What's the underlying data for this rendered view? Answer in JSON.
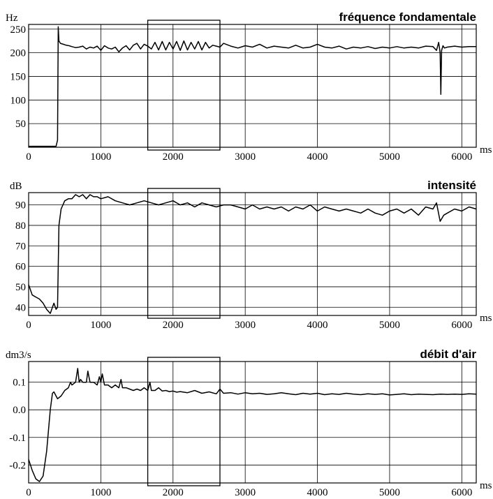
{
  "chart_data": [
    {
      "type": "line",
      "title": "fréquence fondamentale",
      "ylabel": "Hz",
      "xlabel": "ms",
      "xlim": [
        0,
        6200
      ],
      "ylim": [
        0,
        260
      ],
      "xticks": [
        0,
        1000,
        2000,
        3000,
        4000,
        5000,
        6000
      ],
      "yticks": [
        50,
        100,
        150,
        200,
        250
      ],
      "grid": true,
      "highlight_range": [
        1650,
        2650
      ],
      "series": [
        {
          "x": [
            0,
            350,
            380,
            400,
            410,
            420,
            440,
            480,
            520,
            560,
            600,
            650,
            700,
            750,
            800,
            850,
            900,
            950,
            1000,
            1050,
            1100,
            1150,
            1200,
            1250,
            1300,
            1350,
            1400,
            1450,
            1500,
            1550,
            1600,
            1650,
            1700,
            1750,
            1800,
            1850,
            1900,
            1950,
            2000,
            2050,
            2100,
            2150,
            2200,
            2250,
            2300,
            2350,
            2400,
            2450,
            2500,
            2550,
            2600,
            2650,
            2700,
            2800,
            2900,
            3000,
            3100,
            3200,
            3300,
            3400,
            3500,
            3600,
            3700,
            3800,
            3900,
            4000,
            4100,
            4200,
            4300,
            4400,
            4500,
            4600,
            4700,
            4800,
            4900,
            5000,
            5100,
            5200,
            5300,
            5400,
            5500,
            5600,
            5650,
            5680,
            5700,
            5710,
            5720,
            5740,
            5760,
            5800,
            5900,
            6000,
            6100,
            6200
          ],
          "y": [
            2,
            2,
            2,
            15,
            255,
            225,
            220,
            218,
            216,
            215,
            213,
            211,
            212,
            214,
            208,
            212,
            210,
            214,
            205,
            215,
            210,
            208,
            212,
            202,
            210,
            215,
            206,
            216,
            220,
            208,
            218,
            214,
            208,
            222,
            206,
            224,
            206,
            222,
            208,
            224,
            205,
            225,
            206,
            222,
            208,
            224,
            206,
            222,
            210,
            216,
            214,
            212,
            220,
            214,
            210,
            215,
            212,
            218,
            210,
            214,
            212,
            210,
            216,
            210,
            212,
            218,
            212,
            210,
            214,
            208,
            212,
            210,
            213,
            209,
            212,
            210,
            213,
            210,
            212,
            210,
            214,
            213,
            205,
            222,
            200,
            112,
            205,
            215,
            210,
            212,
            214,
            212,
            213,
            213
          ]
        }
      ]
    },
    {
      "type": "line",
      "title": "intensité",
      "ylabel": "dB",
      "xlabel": "ms",
      "xlim": [
        0,
        6200
      ],
      "ylim": [
        36,
        96
      ],
      "xticks": [
        0,
        1000,
        2000,
        3000,
        4000,
        5000,
        6000
      ],
      "yticks": [
        40,
        50,
        60,
        70,
        80,
        90
      ],
      "grid": true,
      "highlight_range": [
        1650,
        2650
      ],
      "series": [
        {
          "x": [
            0,
            50,
            100,
            150,
            200,
            250,
            300,
            330,
            350,
            380,
            400,
            420,
            450,
            500,
            550,
            600,
            650,
            700,
            750,
            800,
            850,
            900,
            950,
            1000,
            1100,
            1200,
            1300,
            1400,
            1500,
            1600,
            1700,
            1800,
            1900,
            2000,
            2100,
            2200,
            2300,
            2400,
            2500,
            2600,
            2700,
            2800,
            2900,
            3000,
            3100,
            3200,
            3300,
            3400,
            3500,
            3600,
            3700,
            3800,
            3900,
            4000,
            4100,
            4200,
            4300,
            4400,
            4500,
            4600,
            4700,
            4800,
            4900,
            5000,
            5100,
            5200,
            5300,
            5400,
            5500,
            5600,
            5650,
            5700,
            5750,
            5800,
            5900,
            6000,
            6100,
            6200
          ],
          "y": [
            51,
            46,
            45,
            44,
            42,
            39,
            37,
            40,
            42,
            39,
            40,
            80,
            88,
            92,
            93,
            93,
            95,
            94,
            95,
            93,
            95,
            94,
            94,
            93,
            94,
            92,
            91,
            90,
            91,
            92,
            91,
            90,
            91,
            92,
            90,
            91,
            89,
            91,
            90,
            89,
            90,
            90,
            89,
            88,
            90,
            88,
            89,
            88,
            89,
            87,
            89,
            88,
            90,
            87,
            89,
            88,
            87,
            88,
            87,
            86,
            88,
            86,
            85,
            87,
            88,
            86,
            88,
            85,
            89,
            88,
            91,
            82,
            85,
            86,
            88,
            87,
            89,
            88
          ]
        }
      ]
    },
    {
      "type": "line",
      "title": "débit d'air",
      "ylabel": "dm3/s",
      "xlabel": "ms",
      "xlim": [
        0,
        6200
      ],
      "ylim": [
        -0.265,
        0.175
      ],
      "xticks": [
        0,
        1000,
        2000,
        3000,
        4000,
        5000,
        6000
      ],
      "yticks": [
        -0.2,
        -0.1,
        0.0,
        0.1
      ],
      "grid": true,
      "highlight_range": [
        1650,
        2650
      ],
      "series": [
        {
          "x": [
            0,
            50,
            100,
            150,
            200,
            250,
            300,
            330,
            350,
            400,
            450,
            500,
            550,
            580,
            600,
            650,
            680,
            700,
            720,
            750,
            800,
            820,
            850,
            880,
            900,
            950,
            980,
            1000,
            1020,
            1050,
            1100,
            1150,
            1200,
            1250,
            1280,
            1300,
            1350,
            1400,
            1450,
            1500,
            1550,
            1600,
            1650,
            1680,
            1700,
            1750,
            1800,
            1850,
            1900,
            1950,
            2000,
            2050,
            2100,
            2200,
            2300,
            2400,
            2500,
            2600,
            2650,
            2700,
            2800,
            2900,
            3000,
            3100,
            3200,
            3300,
            3400,
            3500,
            3600,
            3700,
            3800,
            3900,
            4000,
            4100,
            4200,
            4300,
            4400,
            4500,
            4600,
            4700,
            4800,
            4900,
            5000,
            5100,
            5200,
            5300,
            5400,
            5500,
            5600,
            5700,
            5800,
            5900,
            6000,
            6100,
            6200
          ],
          "y": [
            -0.18,
            -0.22,
            -0.25,
            -0.26,
            -0.24,
            -0.15,
            0.0,
            0.06,
            0.065,
            0.04,
            0.05,
            0.07,
            0.08,
            0.1,
            0.09,
            0.1,
            0.15,
            0.1,
            0.11,
            0.1,
            0.1,
            0.14,
            0.1,
            0.1,
            0.1,
            0.09,
            0.12,
            0.1,
            0.13,
            0.09,
            0.09,
            0.08,
            0.09,
            0.08,
            0.11,
            0.08,
            0.08,
            0.075,
            0.07,
            0.075,
            0.07,
            0.08,
            0.07,
            0.1,
            0.07,
            0.07,
            0.08,
            0.068,
            0.07,
            0.066,
            0.068,
            0.064,
            0.066,
            0.062,
            0.07,
            0.06,
            0.065,
            0.058,
            0.075,
            0.06,
            0.062,
            0.057,
            0.062,
            0.058,
            0.06,
            0.056,
            0.058,
            0.062,
            0.058,
            0.055,
            0.06,
            0.057,
            0.06,
            0.055,
            0.058,
            0.056,
            0.06,
            0.057,
            0.055,
            0.058,
            0.056,
            0.058,
            0.054,
            0.056,
            0.058,
            0.055,
            0.057,
            0.056,
            0.055,
            0.057,
            0.056,
            0.057,
            0.056,
            0.058,
            0.057
          ]
        }
      ]
    }
  ]
}
